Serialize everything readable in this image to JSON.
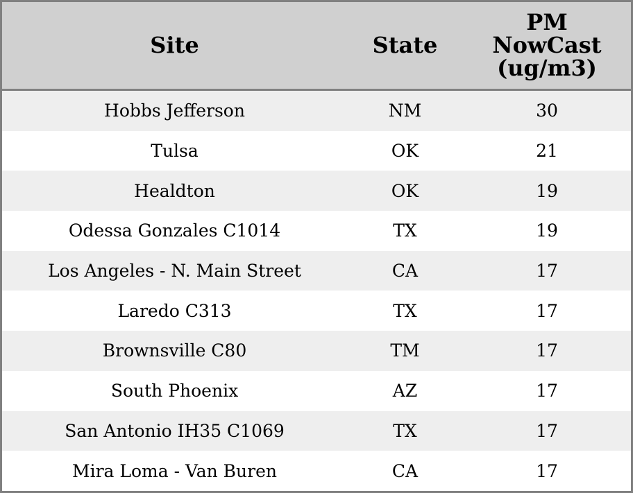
{
  "chart_data": {
    "type": "table",
    "columns": [
      "Site",
      "State",
      "PM NowCast (ug/m3)"
    ],
    "rows": [
      [
        "Hobbs Jefferson",
        "NM",
        "30"
      ],
      [
        "Tulsa",
        "OK",
        "21"
      ],
      [
        "Healdton",
        "OK",
        "19"
      ],
      [
        "Odessa Gonzales C1014",
        "TX",
        "19"
      ],
      [
        "Los Angeles - N. Main Street",
        "CA",
        "17"
      ],
      [
        "Laredo C313",
        "TX",
        "17"
      ],
      [
        "Brownsville C80",
        "TM",
        "17"
      ],
      [
        "South Phoenix",
        "AZ",
        "17"
      ],
      [
        "San Antonio IH35 C1069",
        "TX",
        "17"
      ],
      [
        "Mira Loma - Van Buren",
        "CA",
        "17"
      ]
    ],
    "colors": {
      "header_bg": "#d0d0d0",
      "stripe_bg": "#eeeeee",
      "border": "#808080"
    }
  }
}
